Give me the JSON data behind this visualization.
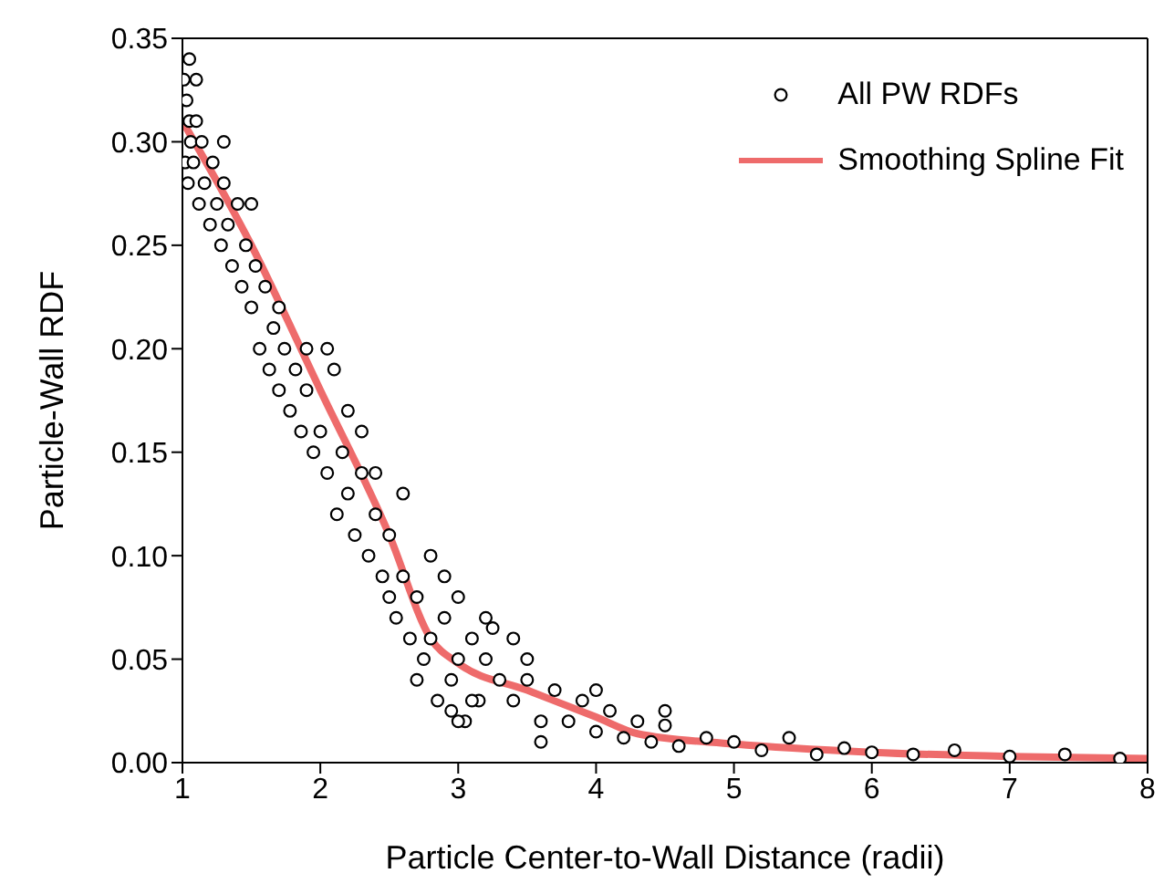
{
  "chart_data": {
    "type": "scatter",
    "xlabel": "Particle Center-to-Wall Distance (radii)",
    "ylabel": "Particle-Wall RDF",
    "xlim": [
      1,
      8
    ],
    "xticks": [
      1,
      2,
      3,
      4,
      5,
      6,
      7,
      8
    ],
    "ylim": [
      0,
      0.35
    ],
    "yticks": [
      {
        "value": 0,
        "label": "0.00"
      },
      {
        "value": 0.05,
        "label": "0.05"
      },
      {
        "value": 0.1,
        "label": "0.10"
      },
      {
        "value": 0.15,
        "label": "0.15"
      },
      {
        "value": 0.2,
        "label": "0.20"
      },
      {
        "value": 0.25,
        "label": "0.25"
      },
      {
        "value": 0.3,
        "label": "0.30"
      },
      {
        "value": 0.35,
        "label": "0.35"
      }
    ],
    "legend": "top right",
    "series": [
      {
        "name": "All PW RDFs",
        "color": "#000000",
        "marker": "circle",
        "x": [
          1.01,
          1.02,
          1.03,
          1.04,
          1.05,
          1.06,
          1.08,
          1.1,
          1.12,
          1.14,
          1.16,
          1.2,
          1.22,
          1.25,
          1.28,
          1.3,
          1.33,
          1.36,
          1.4,
          1.43,
          1.46,
          1.5,
          1.53,
          1.56,
          1.6,
          1.63,
          1.66,
          1.7,
          1.74,
          1.78,
          1.82,
          1.86,
          1.9,
          1.95,
          2.0,
          2.05,
          2.1,
          2.12,
          2.16,
          2.2,
          2.25,
          2.3,
          2.35,
          2.4,
          2.45,
          2.5,
          2.55,
          2.6,
          2.65,
          2.7,
          2.75,
          2.8,
          2.85,
          2.9,
          2.95,
          3.0,
          3.05,
          3.1,
          3.15,
          3.2,
          3.3,
          3.4,
          3.5,
          3.6,
          3.7,
          3.8,
          3.9,
          4.0,
          4.1,
          4.2,
          4.3,
          4.4,
          4.5,
          4.6,
          4.8,
          5.0,
          5.2,
          5.4,
          5.6,
          5.8,
          6.0,
          6.3,
          6.6,
          7.0,
          7.4,
          7.8,
          2.6,
          2.8,
          3.0,
          3.2,
          3.4,
          2.9,
          3.1,
          3.5,
          2.7,
          2.5,
          2.3,
          3.0,
          3.6,
          4.0,
          4.5,
          1.5,
          1.7,
          1.9,
          2.2,
          2.4,
          1.3,
          1.1,
          1.05,
          2.05,
          2.95,
          3.25
        ],
        "values": [
          0.33,
          0.29,
          0.32,
          0.28,
          0.31,
          0.3,
          0.29,
          0.31,
          0.27,
          0.3,
          0.28,
          0.26,
          0.29,
          0.27,
          0.25,
          0.28,
          0.26,
          0.24,
          0.27,
          0.23,
          0.25,
          0.22,
          0.24,
          0.2,
          0.23,
          0.19,
          0.21,
          0.18,
          0.2,
          0.17,
          0.19,
          0.16,
          0.18,
          0.15,
          0.16,
          0.14,
          0.19,
          0.12,
          0.15,
          0.13,
          0.11,
          0.14,
          0.1,
          0.12,
          0.09,
          0.11,
          0.07,
          0.09,
          0.06,
          0.08,
          0.05,
          0.06,
          0.03,
          0.07,
          0.04,
          0.05,
          0.02,
          0.06,
          0.03,
          0.05,
          0.04,
          0.03,
          0.04,
          0.02,
          0.035,
          0.02,
          0.03,
          0.015,
          0.025,
          0.012,
          0.02,
          0.01,
          0.018,
          0.008,
          0.012,
          0.01,
          0.006,
          0.012,
          0.004,
          0.007,
          0.005,
          0.004,
          0.006,
          0.003,
          0.004,
          0.002,
          0.13,
          0.1,
          0.08,
          0.07,
          0.06,
          0.09,
          0.03,
          0.05,
          0.04,
          0.08,
          0.16,
          0.02,
          0.01,
          0.035,
          0.025,
          0.27,
          0.22,
          0.2,
          0.17,
          0.14,
          0.3,
          0.33,
          0.34,
          0.2,
          0.025,
          0.065
        ]
      },
      {
        "type": "line",
        "name": "Smoothing Spline Fit",
        "color": "#ee6b6b",
        "x": [
          1,
          1.5,
          2,
          2.5,
          2.8,
          3,
          3.5,
          4,
          4.3,
          5,
          6,
          7,
          8
        ],
        "values": [
          0.31,
          0.25,
          0.18,
          0.11,
          0.06,
          0.048,
          0.035,
          0.022,
          0.014,
          0.009,
          0.005,
          0.003,
          0.002
        ]
      }
    ]
  }
}
